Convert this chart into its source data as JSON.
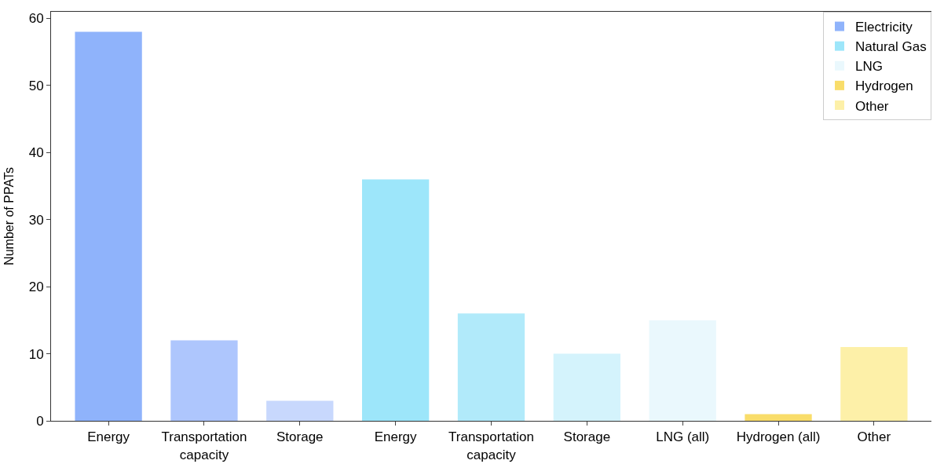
{
  "chart_data": {
    "type": "bar",
    "ylabel": "Number of PPATs",
    "categories": [
      "Energy",
      "Transportation capacity",
      "Storage",
      "Energy",
      "Transportation capacity",
      "Storage",
      "LNG (all)",
      "Hydrogen (all)",
      "Other"
    ],
    "series": [
      {
        "name": "Electricity",
        "colors": [
          "#8fb3fb",
          "#aec6fd",
          "#c8d8fd",
          null,
          null,
          null,
          null,
          null,
          null
        ],
        "values": [
          58,
          12,
          3,
          null,
          null,
          null,
          null,
          null,
          null
        ]
      },
      {
        "name": "Natural Gas",
        "colors": [
          null,
          null,
          null,
          "#9de6fa",
          "#b1eafa",
          "#d4f3fc",
          null,
          null,
          null
        ],
        "values": [
          null,
          null,
          null,
          36,
          16,
          10,
          null,
          null,
          null
        ]
      },
      {
        "name": "LNG",
        "colors": [
          null,
          null,
          null,
          null,
          null,
          null,
          "#eaf8fd",
          null,
          null
        ],
        "values": [
          null,
          null,
          null,
          null,
          null,
          null,
          15,
          null,
          null
        ]
      },
      {
        "name": "Hydrogen",
        "colors": [
          null,
          null,
          null,
          null,
          null,
          null,
          null,
          "#f9dd6a",
          null
        ],
        "values": [
          null,
          null,
          null,
          null,
          null,
          null,
          null,
          1,
          null
        ]
      },
      {
        "name": "Other",
        "colors": [
          null,
          null,
          null,
          null,
          null,
          null,
          null,
          null,
          "#fdf0a8"
        ],
        "values": [
          null,
          null,
          null,
          null,
          null,
          null,
          null,
          null,
          11
        ]
      }
    ],
    "ylim": [
      0,
      61
    ],
    "yticks": [
      0,
      10,
      20,
      30,
      40,
      50,
      60
    ],
    "legend": "top right",
    "grid": false
  }
}
